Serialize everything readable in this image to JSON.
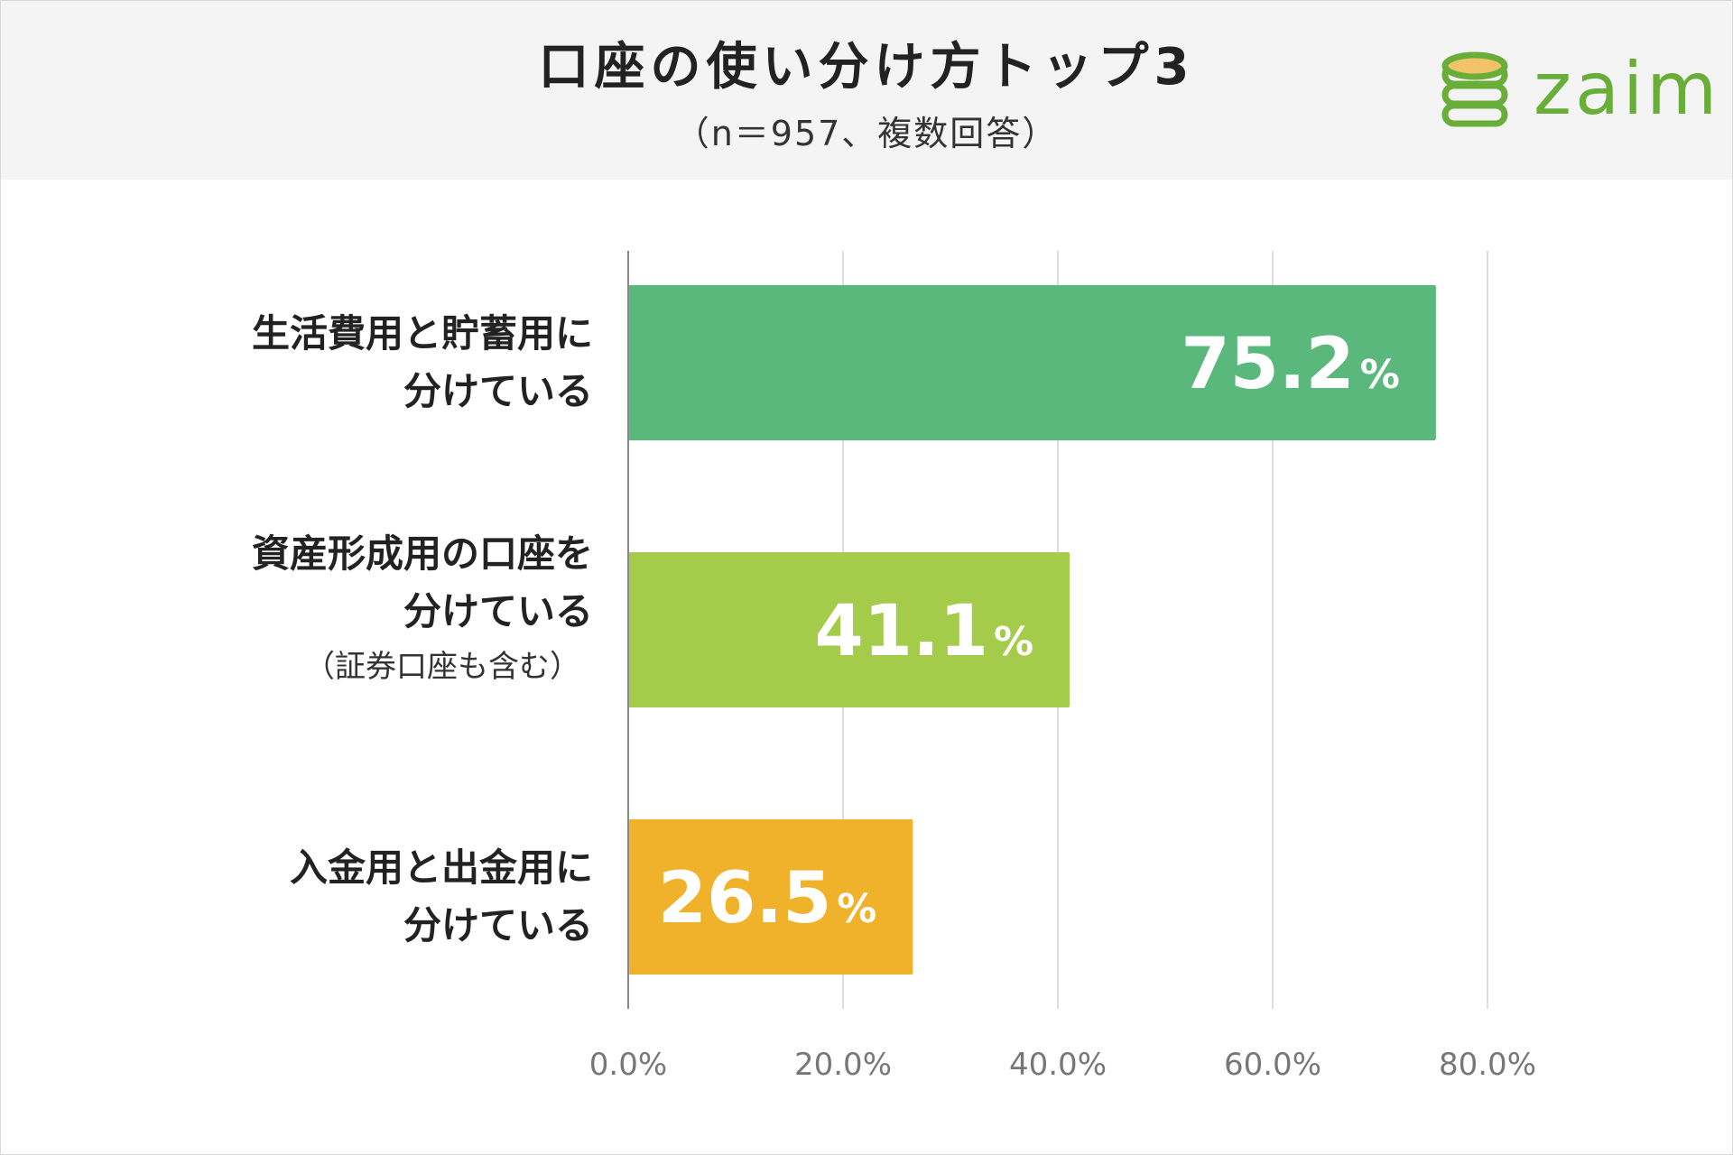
{
  "header": {
    "title": "口座の使い分け方トップ3",
    "subtitle": "（n＝957、複数回答）"
  },
  "logo": {
    "word": "zaim",
    "icon": "coin-stack-icon",
    "color": "#6aae3a"
  },
  "chart_data": {
    "type": "bar",
    "orientation": "horizontal",
    "title": "口座の使い分け方トップ3",
    "subtitle": "（n＝957、複数回答）",
    "categories": [
      {
        "lines": [
          "生活費用と貯蓄用に",
          "分けている"
        ],
        "note": ""
      },
      {
        "lines": [
          "資産形成用の口座を",
          "分けている"
        ],
        "note": "（証券口座も含む）"
      },
      {
        "lines": [
          "入金用と出金用に",
          "分けている"
        ],
        "note": ""
      }
    ],
    "values": [
      75.2,
      41.1,
      26.5
    ],
    "value_labels": [
      "75.2",
      "41.1",
      "26.5"
    ],
    "value_suffix": "%",
    "colors": [
      "#5bb87c",
      "#a5cb4b",
      "#f0b22a"
    ],
    "xlim": [
      0,
      80
    ],
    "x_ticks": [
      0,
      20,
      40,
      60,
      80
    ],
    "x_tick_labels": [
      "0.0%",
      "20.0%",
      "40.0%",
      "60.0%",
      "80.0%"
    ],
    "grid": true,
    "legend": "none",
    "xlabel": "",
    "ylabel": ""
  }
}
